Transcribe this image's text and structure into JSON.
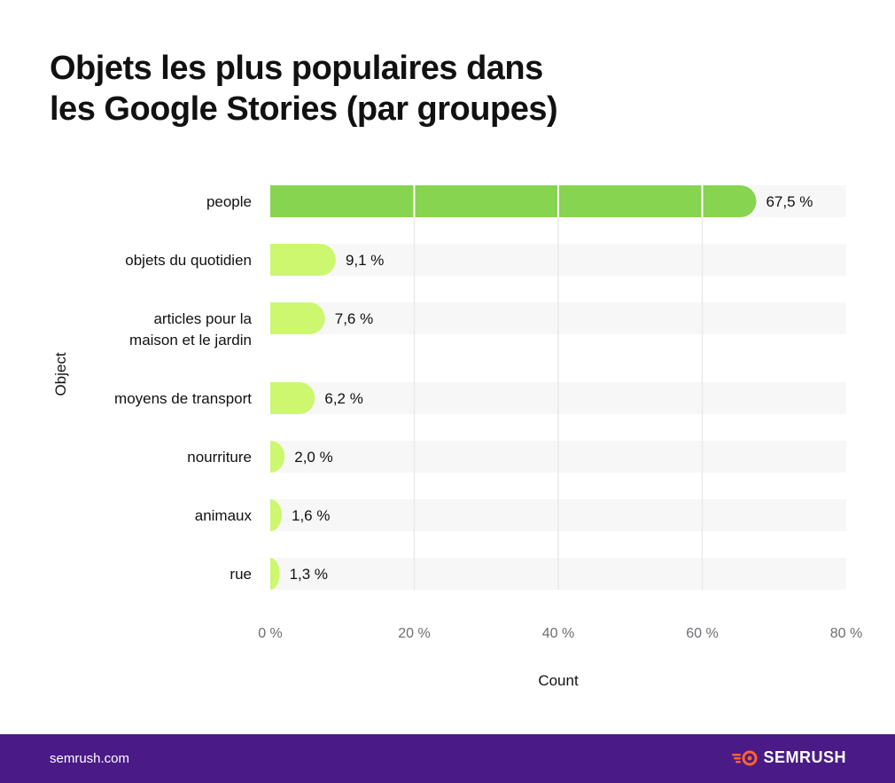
{
  "title_line1": "Objets les plus populaires dans",
  "title_line2": "les Google Stories (par groupes)",
  "footer": {
    "url": "semrush.com",
    "brand": "SEMRUSH"
  },
  "colors": {
    "primary_bar": "#86d44f",
    "secondary_bar": "#ccf76e",
    "track": "#f7f7f8",
    "footer_bg": "#4a1a87",
    "logo": "#ff642d"
  },
  "chart_data": {
    "type": "bar",
    "orientation": "horizontal",
    "categories": [
      [
        "people"
      ],
      [
        "objets du quotidien"
      ],
      [
        "articles pour la",
        "maison et le jardin"
      ],
      [
        "moyens de transport"
      ],
      [
        "nourriture"
      ],
      [
        "animaux"
      ],
      [
        "rue"
      ]
    ],
    "values": [
      67.5,
      9.1,
      7.6,
      6.2,
      2.0,
      1.6,
      1.3
    ],
    "value_labels": [
      "67,5 %",
      "9,1 %",
      "7,6 %",
      "6,2 %",
      "2,0 %",
      "1,6 %",
      "1,3 %"
    ],
    "xlim": [
      0,
      80
    ],
    "x_ticks": [
      0,
      20,
      40,
      60,
      80
    ],
    "x_tick_labels": [
      "0 %",
      "20 %",
      "40 %",
      "60 %",
      "80 %"
    ],
    "xlabel": "Count",
    "ylabel": "Object",
    "grid": true
  }
}
